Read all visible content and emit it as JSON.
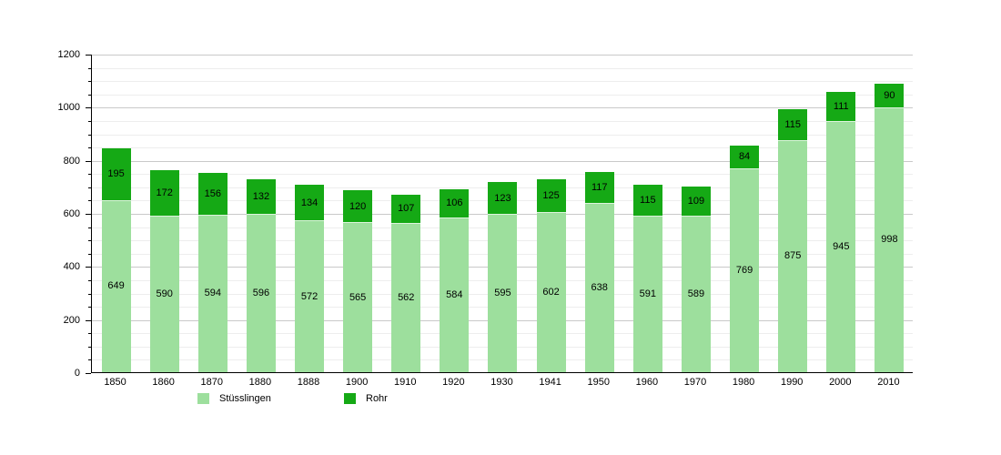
{
  "chart": {
    "background": "#ffffff",
    "axis_color": "#000000",
    "grid_major_color": "#c9c9c9",
    "grid_minor_color": "#ededed",
    "text_color": "#000000"
  },
  "chart_data": {
    "type": "bar",
    "stacked": true,
    "title": "",
    "xlabel": "",
    "ylabel": "",
    "categories": [
      "1850",
      "1860",
      "1870",
      "1880",
      "1888",
      "1900",
      "1910",
      "1920",
      "1930",
      "1941",
      "1950",
      "1960",
      "1970",
      "1980",
      "1990",
      "2000",
      "2010"
    ],
    "series": [
      {
        "name": "Stüsslingen",
        "color": "#9ddf9d",
        "values": [
          649,
          590,
          594,
          596,
          572,
          565,
          562,
          584,
          595,
          602,
          638,
          591,
          589,
          769,
          875,
          945,
          998
        ]
      },
      {
        "name": "Rohr",
        "color": "#15a915",
        "values": [
          195,
          172,
          156,
          132,
          134,
          120,
          107,
          106,
          123,
          125,
          117,
          115,
          109,
          84,
          115,
          111,
          90
        ]
      }
    ],
    "ylim": [
      0,
      1200
    ],
    "y_major_step": 200,
    "y_minor_step": 50,
    "y_tick_labels": [
      "0",
      "200",
      "400",
      "600",
      "800",
      "1000",
      "1200"
    ],
    "grid": true,
    "legend_position": "bottom",
    "legend": [
      {
        "label": "Stüsslingen",
        "color": "#9ddf9d"
      },
      {
        "label": "Rohr",
        "color": "#15a915"
      }
    ]
  }
}
